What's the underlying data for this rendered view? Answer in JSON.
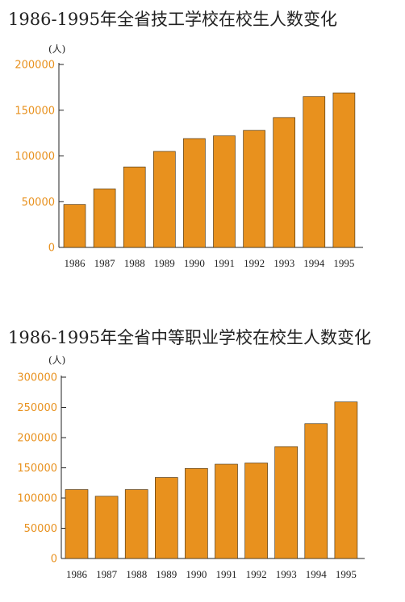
{
  "colors": {
    "bar": "#e8911e",
    "bar_stroke": "#3a2a10",
    "axis": "#222222",
    "tick_label": "#e8911e"
  },
  "chart_data": [
    {
      "type": "bar",
      "title": "1986-1995年全省技工学校在校生人数变化",
      "unit": "(人)",
      "categories": [
        "1986",
        "1987",
        "1988",
        "1989",
        "1990",
        "1991",
        "1992",
        "1993",
        "1994",
        "1995"
      ],
      "values": [
        47000,
        64000,
        88000,
        105000,
        119000,
        122000,
        128000,
        142000,
        165000,
        169000
      ],
      "ylim": [
        0,
        200000
      ],
      "yticks": [
        0,
        50000,
        100000,
        150000,
        200000
      ],
      "ytick_labels": [
        "0",
        "50000",
        "100000",
        "150000",
        "200000"
      ]
    },
    {
      "type": "bar",
      "title": "1986-1995年全省中等职业学校在校生人数变化",
      "unit": "(人)",
      "categories": [
        "1986",
        "1987",
        "1988",
        "1989",
        "1990",
        "1991",
        "1992",
        "1993",
        "1994",
        "1995"
      ],
      "values": [
        114000,
        103000,
        114000,
        134000,
        149000,
        156000,
        158000,
        185000,
        223000,
        259000
      ],
      "ylim": [
        0,
        300000
      ],
      "yticks": [
        0,
        50000,
        100000,
        150000,
        200000,
        250000,
        300000
      ],
      "ytick_labels": [
        "0",
        "50000",
        "100000",
        "150000",
        "200000",
        "250000",
        "300000"
      ]
    }
  ]
}
